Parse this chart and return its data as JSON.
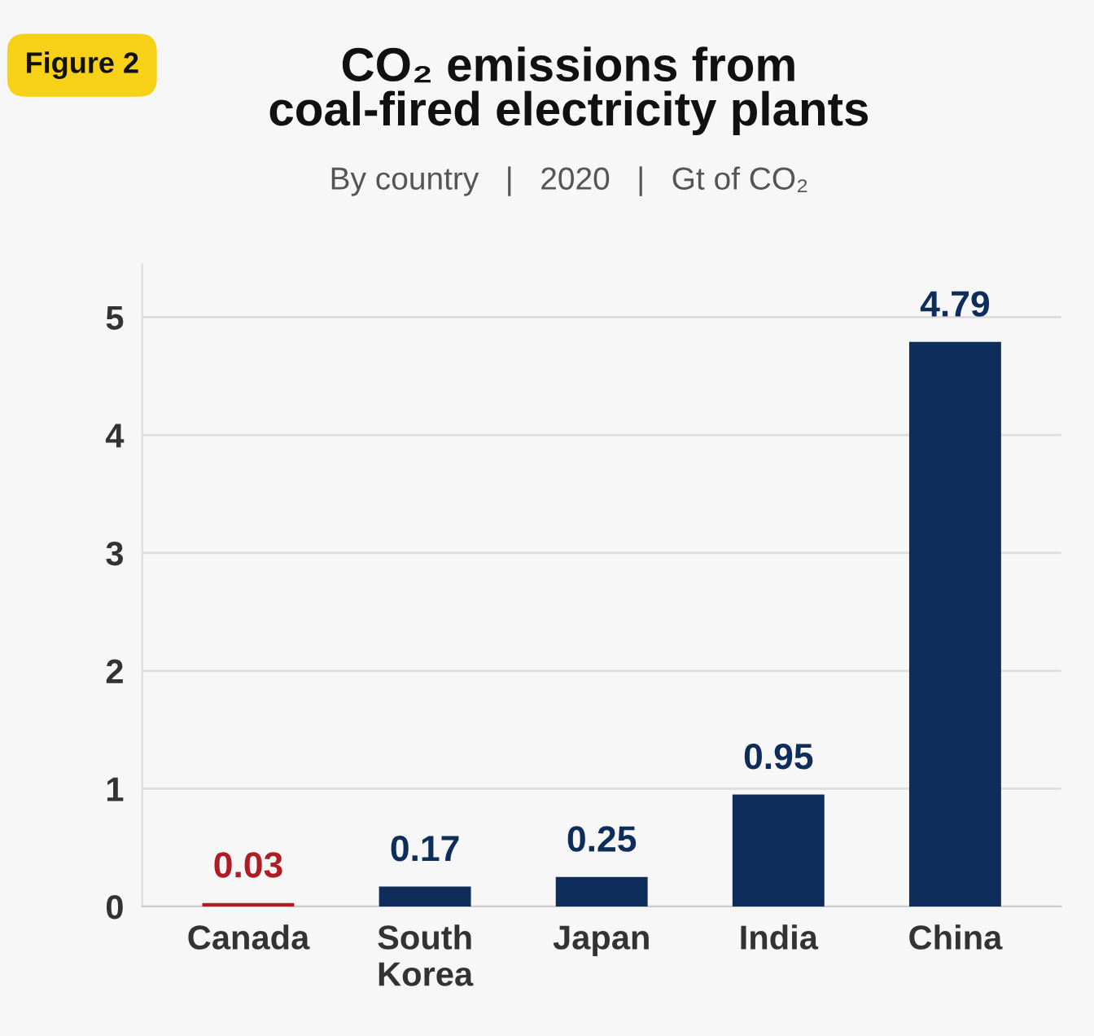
{
  "chart_data": {
    "type": "bar",
    "title": "CO₂ emissions from\ncoal-fired electricity plants",
    "subtitle": "By country   |   2020   |   Gt of CO₂",
    "annotations": [
      "Figure 2"
    ],
    "categories": [
      "Canada",
      "South\nKorea",
      "Japan",
      "India",
      "China"
    ],
    "values": [
      0.03,
      0.17,
      0.25,
      0.95,
      4.79
    ],
    "colors": [
      "#b01c24",
      "#0e2d5a",
      "#0e2d5a",
      "#0e2d5a",
      "#0e2d5a"
    ],
    "ylim": [
      0,
      5.45
    ],
    "yticks": [
      0,
      1,
      2,
      3,
      4,
      5
    ],
    "grid": "y",
    "data_labels": true
  }
}
